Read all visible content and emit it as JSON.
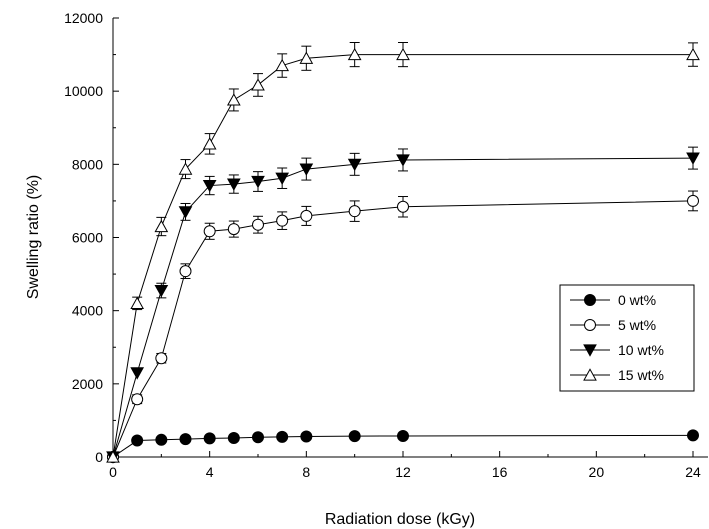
{
  "chart_data": {
    "type": "line",
    "xlabel": "Radiation dose (kGy)",
    "ylabel": "Swelling ratio (%)",
    "xlim": [
      0,
      25
    ],
    "ylim": [
      0,
      12000
    ],
    "x_ticks": [
      0,
      4,
      8,
      12,
      16,
      20,
      24
    ],
    "y_ticks": [
      0,
      2000,
      4000,
      6000,
      8000,
      10000,
      12000
    ],
    "grid": false,
    "legend_position": "right",
    "x": [
      0,
      1,
      2,
      3,
      4,
      5,
      6,
      7,
      8,
      10,
      12,
      24
    ],
    "series": [
      {
        "name": "0 wt%",
        "marker": "filled-circle",
        "values": [
          0,
          450,
          470,
          490,
          510,
          520,
          540,
          550,
          560,
          570,
          575,
          590
        ],
        "errors": [
          0,
          0,
          0,
          0,
          0,
          0,
          0,
          0,
          0,
          0,
          0,
          0
        ]
      },
      {
        "name": " 5 wt%",
        "marker": "open-circle",
        "values": [
          0,
          1580,
          2700,
          5080,
          6170,
          6230,
          6350,
          6460,
          6590,
          6720,
          6840,
          7000
        ],
        "errors": [
          0,
          120,
          130,
          200,
          220,
          220,
          230,
          240,
          260,
          280,
          280,
          270
        ]
      },
      {
        "name": "10 wt%",
        "marker": "filled-triangle-down",
        "values": [
          0,
          2300,
          4550,
          6700,
          7420,
          7460,
          7530,
          7620,
          7870,
          8000,
          8120,
          8170
        ],
        "errors": [
          0,
          0,
          200,
          230,
          250,
          250,
          270,
          280,
          300,
          300,
          300,
          300
        ]
      },
      {
        "name": "15 wt%",
        "marker": "open-triangle-up",
        "values": [
          0,
          4200,
          6300,
          7870,
          8560,
          9760,
          10170,
          10700,
          10900,
          11000,
          11000,
          11000
        ],
        "errors": [
          0,
          170,
          250,
          260,
          280,
          300,
          310,
          320,
          330,
          330,
          330,
          320
        ]
      }
    ]
  }
}
